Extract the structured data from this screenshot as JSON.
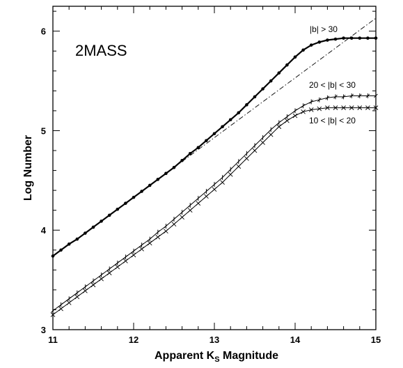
{
  "chart_data": {
    "type": "line",
    "title": "",
    "panel_label": "2MASS",
    "xlabel": "Apparent K",
    "xlabel_subscript": "S",
    "xlabel_suffix": " Magnitude",
    "ylabel": "Log Number",
    "xlim": [
      11,
      15
    ],
    "ylim": [
      3,
      6.25
    ],
    "x_ticks": [
      "11",
      "12",
      "13",
      "14",
      "15"
    ],
    "y_ticks": [
      "3",
      "4",
      "5",
      "6"
    ],
    "x_tick_values": [
      11,
      12,
      13,
      14,
      15
    ],
    "y_tick_values": [
      3,
      4,
      5,
      6
    ],
    "grid": false,
    "series": [
      {
        "name": "|b| > 30",
        "marker": "dot",
        "x": [
          11.0,
          11.1,
          11.2,
          11.3,
          11.4,
          11.5,
          11.6,
          11.7,
          11.8,
          11.9,
          12.0,
          12.1,
          12.2,
          12.3,
          12.4,
          12.5,
          12.6,
          12.7,
          12.8,
          12.9,
          13.0,
          13.1,
          13.2,
          13.3,
          13.4,
          13.5,
          13.6,
          13.7,
          13.8,
          13.9,
          14.0,
          14.1,
          14.2,
          14.3,
          14.4,
          14.5,
          14.6,
          14.7,
          14.8,
          14.9,
          15.0
        ],
        "y": [
          3.74,
          3.8,
          3.86,
          3.91,
          3.97,
          4.03,
          4.09,
          4.15,
          4.21,
          4.27,
          4.33,
          4.39,
          4.45,
          4.51,
          4.57,
          4.63,
          4.7,
          4.77,
          4.83,
          4.9,
          4.97,
          5.04,
          5.11,
          5.18,
          5.26,
          5.34,
          5.42,
          5.5,
          5.58,
          5.66,
          5.74,
          5.81,
          5.86,
          5.89,
          5.91,
          5.92,
          5.93,
          5.93,
          5.93,
          5.93,
          5.93
        ]
      },
      {
        "name": "20 < |b| < 30",
        "marker": "tick",
        "x": [
          11.0,
          11.1,
          11.2,
          11.3,
          11.4,
          11.5,
          11.6,
          11.7,
          11.8,
          11.9,
          12.0,
          12.1,
          12.2,
          12.3,
          12.4,
          12.5,
          12.6,
          12.7,
          12.8,
          12.9,
          13.0,
          13.1,
          13.2,
          13.3,
          13.4,
          13.5,
          13.6,
          13.7,
          13.8,
          13.9,
          14.0,
          14.1,
          14.2,
          14.3,
          14.4,
          14.5,
          14.6,
          14.7,
          14.8,
          14.9,
          15.0
        ],
        "y": [
          3.19,
          3.25,
          3.31,
          3.37,
          3.43,
          3.49,
          3.55,
          3.61,
          3.67,
          3.73,
          3.79,
          3.85,
          3.91,
          3.98,
          4.04,
          4.11,
          4.18,
          4.25,
          4.32,
          4.39,
          4.46,
          4.53,
          4.61,
          4.69,
          4.77,
          4.85,
          4.93,
          5.01,
          5.08,
          5.14,
          5.2,
          5.25,
          5.29,
          5.31,
          5.33,
          5.34,
          5.34,
          5.35,
          5.35,
          5.35,
          5.35
        ]
      },
      {
        "name": "10 < |b| < 20",
        "marker": "cross",
        "x": [
          11.0,
          11.1,
          11.2,
          11.3,
          11.4,
          11.5,
          11.6,
          11.7,
          11.8,
          11.9,
          12.0,
          12.1,
          12.2,
          12.3,
          12.4,
          12.5,
          12.6,
          12.7,
          12.8,
          12.9,
          13.0,
          13.1,
          13.2,
          13.3,
          13.4,
          13.5,
          13.6,
          13.7,
          13.8,
          13.9,
          14.0,
          14.1,
          14.2,
          14.3,
          14.4,
          14.5,
          14.6,
          14.7,
          14.8,
          14.9,
          15.0
        ],
        "y": [
          3.15,
          3.21,
          3.27,
          3.33,
          3.39,
          3.45,
          3.51,
          3.57,
          3.63,
          3.69,
          3.75,
          3.81,
          3.87,
          3.93,
          3.99,
          4.06,
          4.13,
          4.2,
          4.27,
          4.34,
          4.41,
          4.48,
          4.56,
          4.64,
          4.72,
          4.8,
          4.88,
          4.96,
          5.04,
          5.1,
          5.15,
          5.19,
          5.21,
          5.22,
          5.23,
          5.23,
          5.23,
          5.23,
          5.23,
          5.23,
          5.23
        ]
      }
    ],
    "reference_line": {
      "style": "dash-dot",
      "x": [
        12.5,
        15.0
      ],
      "y": [
        4.63,
        6.13
      ]
    }
  }
}
